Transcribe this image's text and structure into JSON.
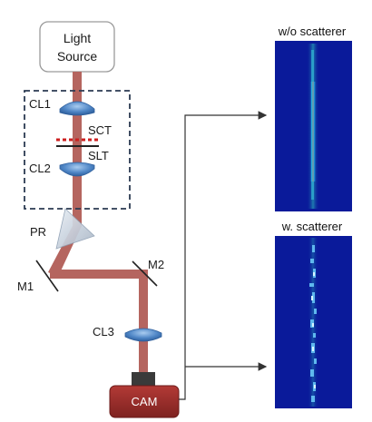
{
  "source": {
    "line1": "Light",
    "line2": "Source"
  },
  "labels": {
    "cl1": "CL1",
    "sct": "SCT",
    "slt": "SLT",
    "cl2": "CL2",
    "pr": "PR",
    "m1": "M1",
    "m2": "M2",
    "cl3": "CL3"
  },
  "camera": "CAM",
  "panels": {
    "top_caption": "w/o scatterer",
    "bottom_caption": "w. scatterer"
  },
  "colors": {
    "beam": "#b5655f",
    "lens": "#4f86c6",
    "dashed_box": "#2b3a52",
    "camera_body": "#9c2f2c",
    "panel_bg": "#0a1a9a",
    "scatterer": "#cc1f1f"
  }
}
